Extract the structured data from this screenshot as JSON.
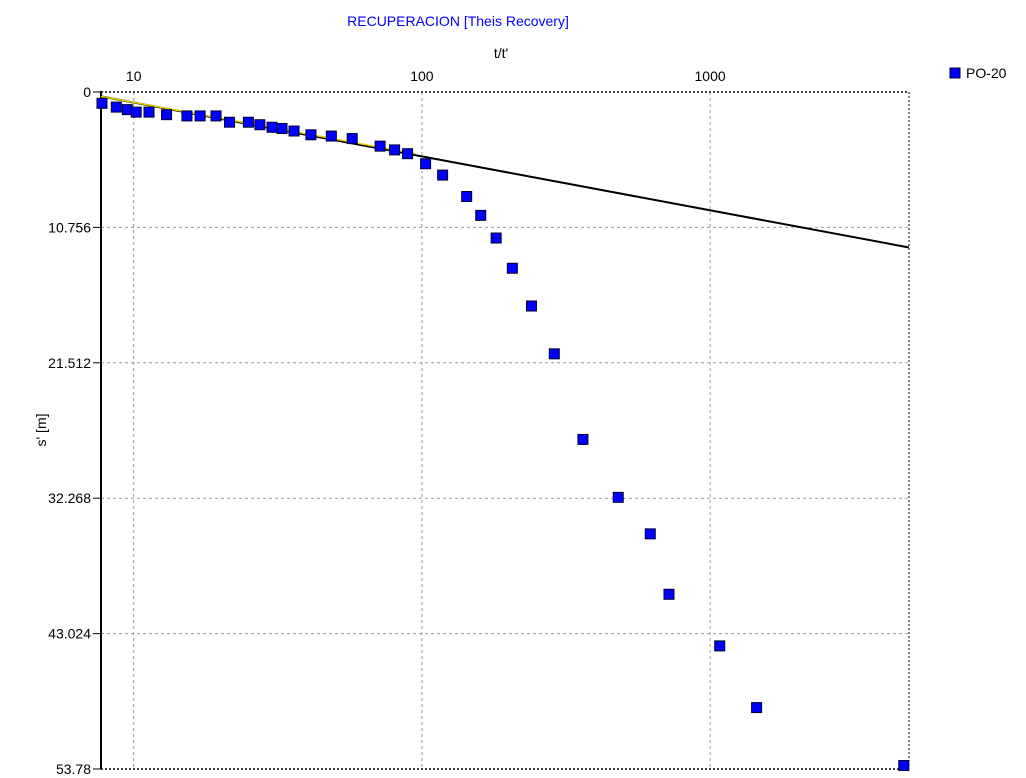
{
  "chart_data": {
    "type": "scatter",
    "title": "RECUPERACION [Theis Recovery]",
    "xlabel": "t/t'",
    "ylabel": "s' [m]",
    "x_scale": "log",
    "x_axis_position": "top",
    "y_inverted": true,
    "xlim": [
      7.7,
      4900
    ],
    "ylim": [
      0,
      53.78
    ],
    "x_ticks": [
      10,
      100,
      1000
    ],
    "x_tick_labels": [
      "10",
      "100",
      "1000"
    ],
    "y_ticks": [
      0,
      10.756,
      21.512,
      32.268,
      43.024,
      53.78
    ],
    "y_tick_labels": [
      "0",
      "10.756",
      "21.512",
      "32.268",
      "43.024",
      "53.78"
    ],
    "grid": true,
    "legend_position": "top-right",
    "series": [
      {
        "name": "PO-20",
        "marker": "square",
        "color": "#0000ff",
        "x": [
          7.75,
          8.7,
          9.5,
          10.2,
          11.3,
          13.0,
          15.3,
          17.0,
          19.3,
          21.5,
          25.0,
          27.4,
          30.2,
          32.7,
          36.0,
          41.2,
          48.5,
          57.3,
          71.6,
          80.4,
          89.2,
          103,
          118,
          143,
          160,
          181,
          206,
          240,
          288,
          362,
          480,
          620,
          720,
          1080,
          1450,
          4700
        ],
        "y": [
          0.9,
          1.2,
          1.4,
          1.6,
          1.6,
          1.8,
          1.9,
          1.9,
          1.9,
          2.4,
          2.4,
          2.6,
          2.8,
          2.9,
          3.1,
          3.4,
          3.5,
          3.7,
          4.3,
          4.6,
          4.9,
          5.7,
          6.6,
          8.3,
          9.8,
          11.6,
          14.0,
          17.0,
          20.8,
          27.6,
          32.2,
          35.1,
          39.9,
          44.0,
          48.9,
          53.5
        ]
      }
    ],
    "fit_line": {
      "color": "#000000",
      "x": [
        7.7,
        4900
      ],
      "y": [
        0.35,
        12.35
      ]
    },
    "fit_overlay": {
      "color": "#e8d000",
      "x": [
        7.7,
        95
      ],
      "y": [
        0.35,
        4.9
      ]
    }
  }
}
